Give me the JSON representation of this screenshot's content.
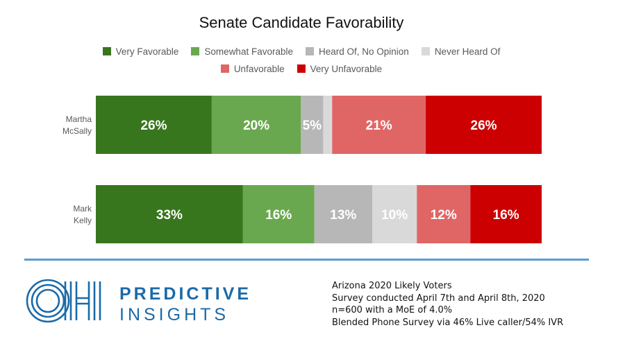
{
  "chart_data": {
    "type": "bar",
    "orientation": "horizontal",
    "stacked": true,
    "percent_stacked": true,
    "title": "Senate Candidate Favorability",
    "categories": [
      "Martha McSally",
      "Mark Kelly"
    ],
    "category_label_lines": [
      [
        "Martha",
        "McSally"
      ],
      [
        "Mark",
        "Kelly"
      ]
    ],
    "series": [
      {
        "name": "Very Favorable",
        "color": "#38761d",
        "values": [
          26,
          33
        ]
      },
      {
        "name": "Somewhat Favorable",
        "color": "#6aa84f",
        "values": [
          20,
          16
        ]
      },
      {
        "name": "Heard Of, No Opinion",
        "color": "#b7b7b7",
        "values": [
          5,
          13
        ]
      },
      {
        "name": "Never Heard Of",
        "color": "#d9d9d9",
        "values": [
          2,
          10
        ]
      },
      {
        "name": "Unfavorable",
        "color": "#e06666",
        "values": [
          21,
          12
        ]
      },
      {
        "name": "Very Unfavorable",
        "color": "#cc0000",
        "values": [
          26,
          16
        ]
      }
    ],
    "data_labels": [
      [
        "26%",
        "20%",
        "5%",
        "",
        "21%",
        "26%"
      ],
      [
        "33%",
        "16%",
        "13%",
        "10%",
        "12%",
        "16%"
      ]
    ],
    "legend_rows": [
      [
        0,
        1,
        2,
        3
      ],
      [
        4,
        5
      ]
    ],
    "legend_position": "top",
    "grid": false
  },
  "footer": {
    "logo_letters": "OH",
    "brand_line1": "PREDICTIVE",
    "brand_line2": "INSIGHTS",
    "notes": [
      "Arizona 2020 Likely Voters",
      "Survey conducted April 7th and April 8th, 2020",
      "n=600 with a MoE of 4.0%",
      "Blended Phone Survey via 46% Live caller/54% IVR"
    ],
    "divider_color": "#5b9bd5",
    "brand_color": "#1a6aa8"
  }
}
